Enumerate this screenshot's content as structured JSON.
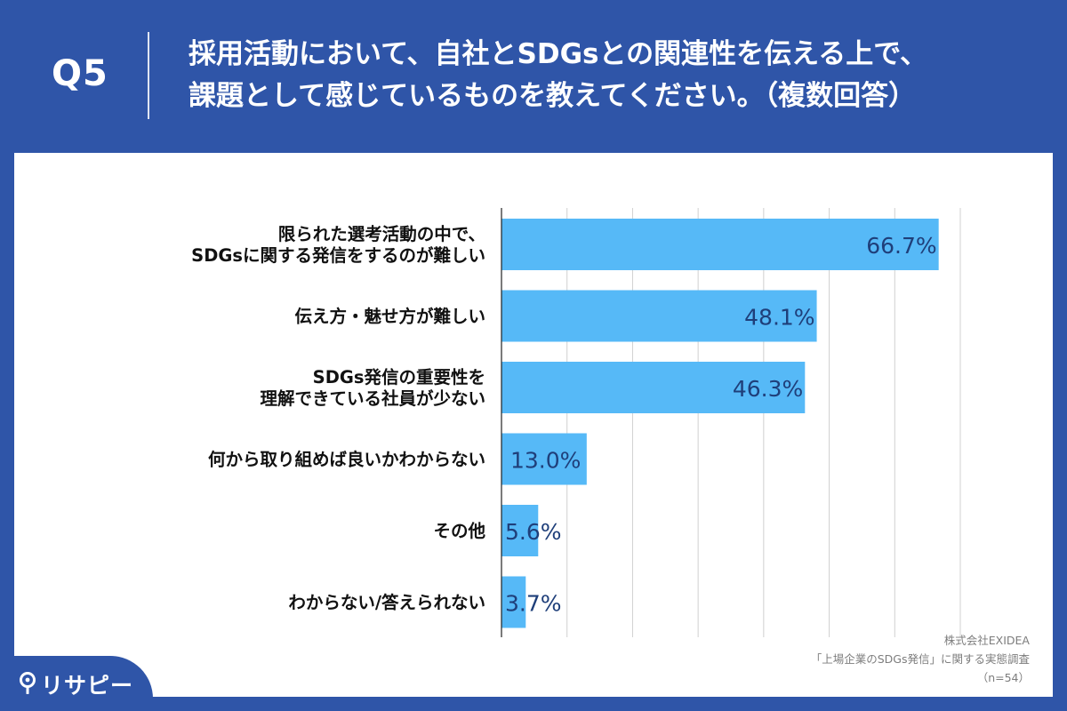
{
  "header": {
    "q_label": "Q5",
    "title_line1": "採用活動において、自社とSDGsとの関連性を伝える上で、",
    "title_line2": "課題として感じているものを教えてください。（複数回答）"
  },
  "source": {
    "line1": "株式会社EXIDEA",
    "line2": "「上場企業のSDGs発信」に関する実態調査",
    "line3": "（n=54）"
  },
  "brand": {
    "name": "リサピー",
    "icon": "pin-icon"
  },
  "colors": {
    "background": "#2f55a8",
    "bar": "#56b9f7",
    "value_label": "#1f3f7a",
    "grid": "#d0d0d0"
  },
  "chart_data": {
    "type": "bar",
    "orientation": "horizontal",
    "categories": [
      [
        "限られた選考活動の中で、",
        "SDGsに関する発信をするのが難しい"
      ],
      [
        "伝え方・魅せ方が難しい"
      ],
      [
        "SDGs発信の重要性を",
        "理解できている社員が少ない"
      ],
      [
        "何から取り組めば良いかわからない"
      ],
      [
        "その他"
      ],
      [
        "わからない/答えられない"
      ]
    ],
    "values": [
      66.7,
      48.1,
      46.3,
      13.0,
      5.6,
      3.7
    ],
    "value_labels": [
      "66.7%",
      "48.1%",
      "46.3%",
      "13.0%",
      "5.6%",
      "3.7%"
    ],
    "unit": "%",
    "xlim": [
      0,
      70
    ],
    "grid": true
  }
}
